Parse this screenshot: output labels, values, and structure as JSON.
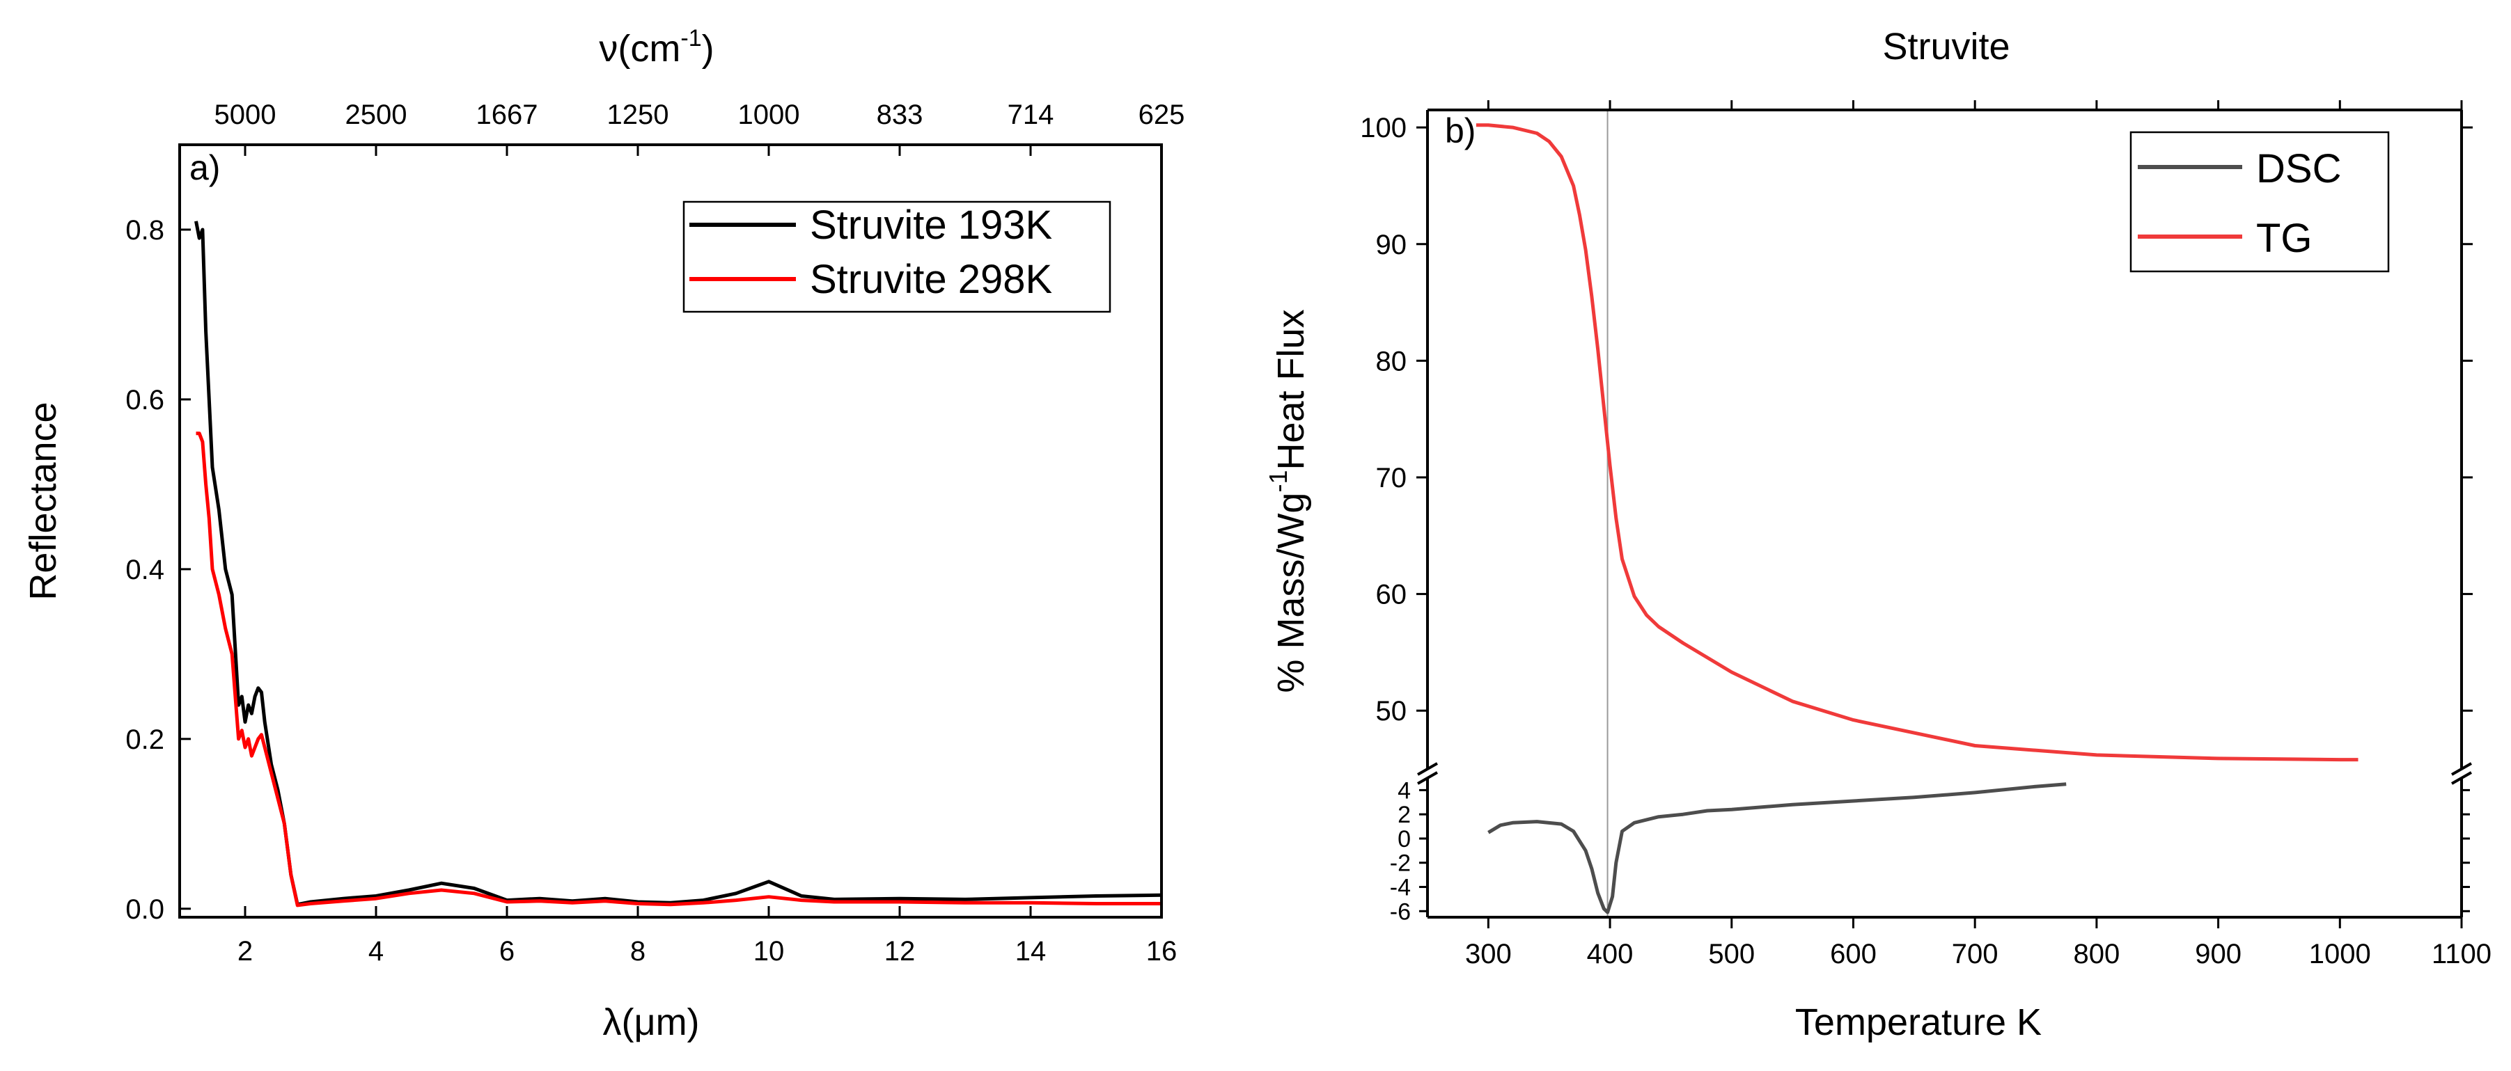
{
  "chart_data": [
    {
      "type": "line",
      "panel": "a)",
      "title": "",
      "xlabel": "λ(μm)",
      "ylabel": "Reflectance",
      "top_axis_label": "ν(cm",
      "top_axis_label_sup": "-1",
      "top_axis_label_end": ")",
      "xlim": [
        1,
        16
      ],
      "ylim": [
        -0.01,
        0.9
      ],
      "xticks": [
        2,
        4,
        6,
        8,
        10,
        12,
        14,
        16
      ],
      "yticks": [
        0.0,
        0.2,
        0.4,
        0.6,
        0.8
      ],
      "xtick_labels": [
        "2",
        "4",
        "6",
        "8",
        "10",
        "12",
        "14",
        "16"
      ],
      "ytick_labels": [
        "0.0",
        "0.2",
        "0.4",
        "0.6",
        "0.8"
      ],
      "top_ticks": [
        {
          "label": "5000",
          "x": 2.0
        },
        {
          "label": "2500",
          "x": 4.0
        },
        {
          "label": "1667",
          "x": 6.0
        },
        {
          "label": "1250",
          "x": 8.0
        },
        {
          "label": "1000",
          "x": 10.0
        },
        {
          "label": "833",
          "x": 12.0
        },
        {
          "label": "714",
          "x": 14.0
        },
        {
          "label": "625",
          "x": 16.0
        }
      ],
      "grid": false,
      "legend_position": "top-right",
      "series": [
        {
          "name": "Struvite 193K",
          "color": "#000000",
          "x": [
            1.25,
            1.3,
            1.35,
            1.4,
            1.45,
            1.5,
            1.6,
            1.7,
            1.8,
            1.9,
            1.95,
            2.0,
            2.05,
            2.1,
            2.15,
            2.2,
            2.25,
            2.3,
            2.4,
            2.5,
            2.6,
            2.7,
            2.8,
            3.0,
            3.5,
            4.0,
            4.5,
            5.0,
            5.5,
            6.0,
            6.5,
            7.0,
            7.5,
            8.0,
            8.5,
            9.0,
            9.5,
            10.0,
            10.5,
            11.0,
            12.0,
            13.0,
            14.0,
            15.0,
            16.0
          ],
          "values": [
            0.81,
            0.79,
            0.8,
            0.68,
            0.6,
            0.52,
            0.47,
            0.4,
            0.37,
            0.24,
            0.25,
            0.22,
            0.24,
            0.23,
            0.25,
            0.26,
            0.255,
            0.22,
            0.17,
            0.14,
            0.1,
            0.04,
            0.005,
            0.008,
            0.012,
            0.015,
            0.022,
            0.03,
            0.024,
            0.01,
            0.012,
            0.009,
            0.012,
            0.008,
            0.007,
            0.01,
            0.018,
            0.032,
            0.015,
            0.011,
            0.012,
            0.011,
            0.013,
            0.015,
            0.016
          ]
        },
        {
          "name": "Struvite 298K",
          "color": "#ff0000",
          "x": [
            1.25,
            1.3,
            1.35,
            1.4,
            1.45,
            1.5,
            1.6,
            1.7,
            1.8,
            1.9,
            1.95,
            2.0,
            2.05,
            2.1,
            2.15,
            2.2,
            2.25,
            2.3,
            2.4,
            2.5,
            2.6,
            2.7,
            2.8,
            3.0,
            3.5,
            4.0,
            4.5,
            5.0,
            5.5,
            6.0,
            6.5,
            7.0,
            7.5,
            8.0,
            8.5,
            9.0,
            9.5,
            10.0,
            10.5,
            11.0,
            12.0,
            13.0,
            14.0,
            15.0,
            16.0
          ],
          "values": [
            0.56,
            0.56,
            0.55,
            0.5,
            0.46,
            0.4,
            0.37,
            0.33,
            0.3,
            0.2,
            0.21,
            0.19,
            0.2,
            0.18,
            0.19,
            0.2,
            0.205,
            0.19,
            0.16,
            0.13,
            0.1,
            0.04,
            0.004,
            0.006,
            0.009,
            0.012,
            0.018,
            0.022,
            0.018,
            0.008,
            0.009,
            0.007,
            0.009,
            0.006,
            0.005,
            0.007,
            0.01,
            0.014,
            0.01,
            0.008,
            0.008,
            0.007,
            0.007,
            0.006,
            0.006
          ]
        }
      ]
    },
    {
      "type": "line",
      "panel": "b)",
      "title": "Struvite",
      "xlabel": "Temperature K",
      "ylabel_parts": [
        "% Mass/Wg",
        "-1",
        "Heat Flux"
      ],
      "xlim": [
        250,
        1100
      ],
      "xticks": [
        300,
        400,
        500,
        600,
        700,
        800,
        900,
        1000,
        1100
      ],
      "xtick_labels": [
        "300",
        "400",
        "500",
        "600",
        "700",
        "800",
        "900",
        "1000",
        "1100"
      ],
      "upper_ylim": [
        45,
        101.5
      ],
      "upper_yticks": [
        50,
        60,
        70,
        80,
        90,
        100
      ],
      "upper_ytick_labels": [
        "50",
        "60",
        "70",
        "80",
        "90",
        "100"
      ],
      "lower_ylim": [
        -6.5,
        5
      ],
      "lower_yticks": [
        -6,
        -4,
        -2,
        0,
        2,
        4
      ],
      "lower_ytick_labels": [
        "-6",
        "-4",
        "-2",
        "0",
        "2",
        "4"
      ],
      "vertical_reference_x": 398,
      "grid": false,
      "legend_position": "top-right",
      "series": [
        {
          "name": "DSC",
          "color": "#4d4d4d",
          "axis": "lower",
          "x": [
            300,
            310,
            320,
            340,
            360,
            370,
            380,
            385,
            390,
            395,
            398,
            402,
            405,
            410,
            420,
            440,
            460,
            480,
            500,
            550,
            600,
            650,
            700,
            750,
            775
          ],
          "values": [
            0.5,
            1.1,
            1.3,
            1.4,
            1.2,
            0.6,
            -1.0,
            -2.5,
            -4.5,
            -5.8,
            -6.1,
            -4.8,
            -2.0,
            0.6,
            1.3,
            1.8,
            2.0,
            2.3,
            2.4,
            2.8,
            3.1,
            3.4,
            3.8,
            4.3,
            4.5
          ]
        },
        {
          "name": "TG",
          "color": "#f03a3a",
          "axis": "upper",
          "x": [
            290,
            300,
            320,
            340,
            350,
            360,
            370,
            375,
            380,
            385,
            390,
            395,
            400,
            405,
            410,
            420,
            430,
            440,
            460,
            500,
            550,
            600,
            700,
            800,
            900,
            1000,
            1015
          ],
          "values": [
            100.2,
            100.2,
            100.0,
            99.5,
            98.8,
            97.5,
            95.0,
            92.5,
            89.5,
            85.5,
            81.0,
            76.0,
            71.0,
            66.5,
            63.0,
            59.8,
            58.2,
            57.2,
            55.8,
            53.3,
            50.8,
            49.2,
            47.0,
            46.2,
            45.9,
            45.8,
            45.8
          ]
        }
      ]
    }
  ]
}
